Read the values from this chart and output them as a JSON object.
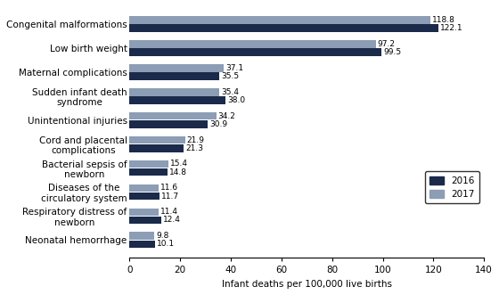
{
  "categories": [
    "Congenital malformations",
    "Low birth weight",
    "Maternal complications",
    "Sudden infant death\nsyndrome",
    "Unintentional injuries",
    "Cord and placental\ncomplications",
    "Bacterial sepsis of\nnewborn",
    "Diseases of the\ncirculatory system",
    "Respiratory distress of\nnewborn",
    "Neonatal hemorrhage"
  ],
  "values_2016": [
    122.1,
    99.5,
    35.5,
    38.0,
    30.9,
    21.3,
    14.8,
    11.7,
    12.4,
    10.1
  ],
  "values_2017": [
    118.8,
    97.2,
    37.1,
    35.4,
    34.2,
    21.9,
    15.4,
    11.6,
    11.4,
    9.8
  ],
  "color_2016": "#1b2a4a",
  "color_2017": "#8c9db5",
  "xlabel": "Infant deaths per 100,000 live births",
  "xlim": [
    0,
    140
  ],
  "xticks": [
    0,
    20,
    40,
    60,
    80,
    100,
    120,
    140
  ],
  "bar_height": 0.32,
  "bar_gap": 0.02,
  "legend_2016": "2016",
  "legend_2017": "2017",
  "value_fontsize": 6.5,
  "label_fontsize": 7.5,
  "tick_fontsize": 7.5,
  "figwidth": 5.6,
  "figheight": 3.31,
  "dpi": 100
}
